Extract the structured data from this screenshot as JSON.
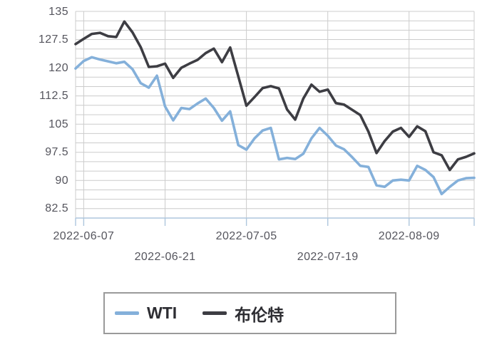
{
  "chart_data": {
    "type": "line",
    "title": "",
    "xlabel": "",
    "ylabel": "",
    "grid": true,
    "legend_position": "bottom",
    "x_ticks": [
      {
        "label": "2022-06-07",
        "index": 1,
        "row": 0
      },
      {
        "label": "2022-06-21",
        "index": 11,
        "row": 1
      },
      {
        "label": "2022-07-05",
        "index": 21,
        "row": 0
      },
      {
        "label": "2022-07-19",
        "index": 31,
        "row": 1
      },
      {
        "label": "2022-08-09",
        "index": 41,
        "row": 0
      }
    ],
    "y_ticks": [
      135,
      127.5,
      120,
      112.5,
      105,
      97.5,
      90,
      82.5
    ],
    "ylim": [
      80,
      135
    ],
    "y_minor_step": 2.5,
    "series": [
      {
        "name": "WTI",
        "color": "#84b0da",
        "values": [
          119.8,
          121.8,
          122.8,
          122.2,
          121.7,
          121.2,
          121.6,
          119.6,
          115.9,
          114.7,
          117.9,
          109.7,
          106.0,
          109.3,
          109.0,
          110.5,
          111.8,
          109.3,
          105.9,
          108.4,
          99.4,
          98.2,
          101.2,
          103.3,
          104.0,
          95.6,
          96.0,
          95.7,
          97.1,
          101.2,
          104.0,
          101.9,
          99.3,
          98.3,
          96.2,
          93.9,
          93.6,
          88.7,
          88.3,
          90.0,
          90.2,
          90.0,
          93.9,
          92.8,
          90.9,
          86.4,
          88.3,
          90.0,
          90.6,
          90.7
        ]
      },
      {
        "name": "布伦特",
        "color": "#3d3d43",
        "values": [
          126.3,
          127.7,
          129.0,
          129.3,
          128.4,
          128.2,
          132.3,
          129.4,
          125.5,
          120.2,
          120.4,
          121.1,
          117.3,
          120.0,
          121.1,
          122.1,
          123.9,
          125.1,
          121.5,
          125.4,
          117.7,
          109.9,
          112.2,
          114.6,
          115.1,
          114.5,
          108.9,
          106.2,
          111.8,
          115.5,
          113.6,
          114.2,
          110.6,
          110.2,
          108.8,
          107.4,
          103.0,
          97.3,
          100.5,
          103.0,
          104.0,
          101.6,
          104.4,
          103.1,
          97.5,
          96.7,
          92.8,
          95.6,
          96.3,
          97.2
        ]
      }
    ],
    "colors": {
      "grid": "#cccccc",
      "axis": "#aec6dd",
      "label": "#55555d",
      "legend_border": "#9a9a9a",
      "legend_text": "#2d2d32",
      "background": "#ffffff"
    }
  }
}
